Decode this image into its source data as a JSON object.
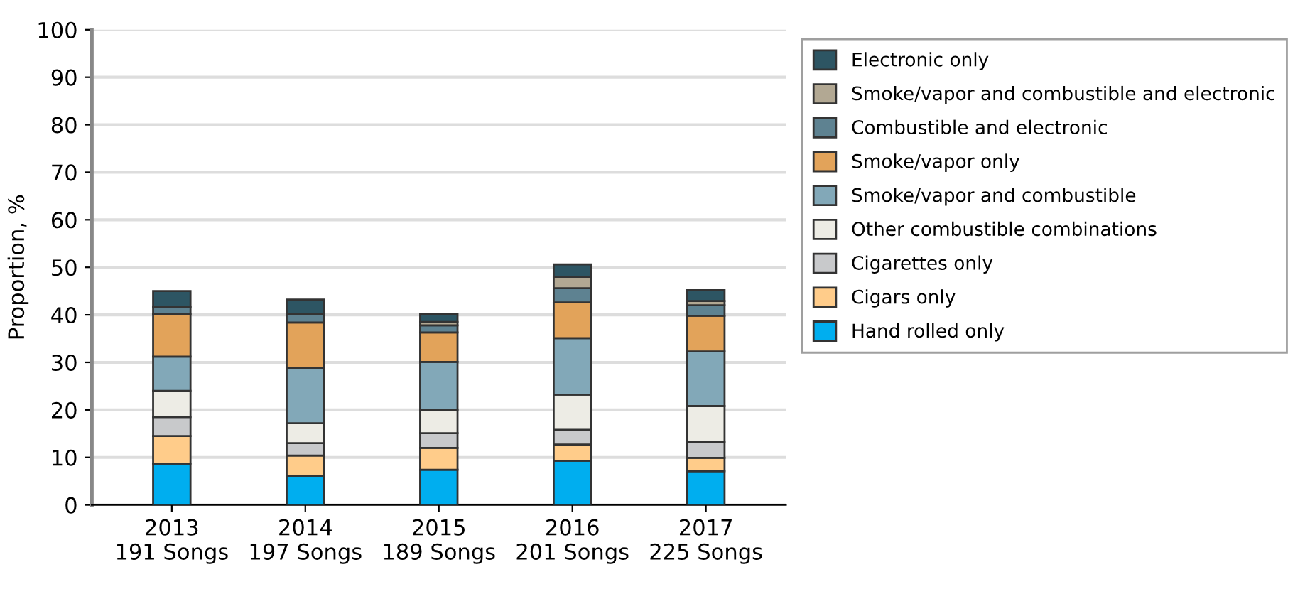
{
  "chart_data": {
    "type": "bar",
    "stacked": true,
    "ylabel": "Proportion, %",
    "categories": [
      "2013\n191 Songs",
      "2014\n197 Songs",
      "2015\n189 Songs",
      "2016\n201 Songs",
      "2017\n225 Songs"
    ],
    "series": [
      {
        "name": "Hand rolled only",
        "color": "#00aeef",
        "values": [
          8.7,
          6.0,
          7.4,
          9.3,
          7.1
        ]
      },
      {
        "name": "Cigars only",
        "color": "#ffcc8a",
        "values": [
          5.8,
          4.4,
          4.6,
          3.4,
          2.8
        ]
      },
      {
        "name": "Cigarettes only",
        "color": "#c8c9cb",
        "values": [
          4.0,
          2.6,
          3.1,
          3.1,
          3.3
        ]
      },
      {
        "name": "Other combustible combinations",
        "color": "#edece5",
        "values": [
          5.5,
          4.2,
          4.8,
          7.4,
          7.6
        ]
      },
      {
        "name": "Smoke/vapor and combustible",
        "color": "#82a8b8",
        "values": [
          7.2,
          11.6,
          10.2,
          11.9,
          11.5
        ]
      },
      {
        "name": "Smoke/vapor only",
        "color": "#e2a35a",
        "values": [
          9.0,
          9.6,
          6.2,
          7.5,
          7.5
        ]
      },
      {
        "name": "Combustible and electronic",
        "color": "#5e8291",
        "values": [
          1.4,
          1.8,
          1.5,
          3.0,
          2.2
        ]
      },
      {
        "name": "Smoke/vapor and combustible and electronic",
        "color": "#b2a893",
        "values": [
          null,
          null,
          0.7,
          2.4,
          0.9
        ]
      },
      {
        "name": "Electronic only",
        "color": "#2d5563",
        "values": [
          3.4,
          3.0,
          1.6,
          2.6,
          2.3
        ]
      }
    ],
    "ylim": [
      0,
      100
    ],
    "yticks": [
      0,
      10,
      20,
      30,
      40,
      50,
      60,
      70,
      80,
      90,
      100
    ],
    "grid": "y",
    "legend": "right"
  }
}
